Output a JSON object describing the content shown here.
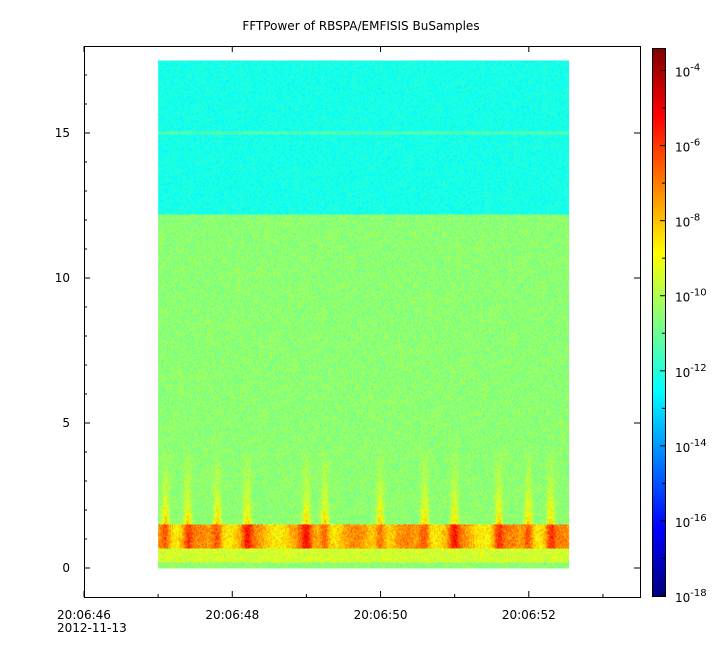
{
  "chart_data": {
    "type": "heatmap",
    "title": "FFTPower of RBSPA/EMFISIS  BuSamples",
    "x_ticks": [
      {
        "label": "20:06:46",
        "t": 0
      },
      {
        "label": "20:06:48",
        "t": 2
      },
      {
        "label": "20:06:50",
        "t": 4
      },
      {
        "label": "20:06:52",
        "t": 6
      }
    ],
    "x_date_label": "2012-11-13",
    "x_range_seconds": [
      0,
      7.5
    ],
    "data_time_span": [
      1.0,
      6.55
    ],
    "y_ticks": [
      0,
      5,
      10,
      15
    ],
    "ylim": [
      -1,
      18
    ],
    "data_freq_span": [
      0,
      17.5
    ],
    "colorbar": {
      "scale": "log",
      "range_exp": [
        -18,
        -3.4
      ],
      "ticks": [
        {
          "base": "10",
          "exp": "-4"
        },
        {
          "base": "10",
          "exp": "-6"
        },
        {
          "base": "10",
          "exp": "-8"
        },
        {
          "base": "10",
          "exp": "-10"
        },
        {
          "base": "10",
          "exp": "-12"
        },
        {
          "base": "10",
          "exp": "-14"
        },
        {
          "base": "10",
          "exp": "-16"
        },
        {
          "base": "10",
          "exp": "-18"
        }
      ],
      "tick_exps": [
        -4,
        -6,
        -8,
        -10,
        -12,
        -14,
        -16,
        -18
      ]
    },
    "features": {
      "background_low_exp": -10.5,
      "background_high_exp": -12.2,
      "band_break_freq": 12.2,
      "horizontal_line_freq": 15.0,
      "intense_band_freq": [
        0.7,
        1.5
      ],
      "burst_times": [
        1.1,
        1.4,
        1.8,
        2.2,
        3.0,
        3.25,
        4.0,
        4.6,
        5.0,
        5.6,
        6.0,
        6.3
      ]
    }
  }
}
